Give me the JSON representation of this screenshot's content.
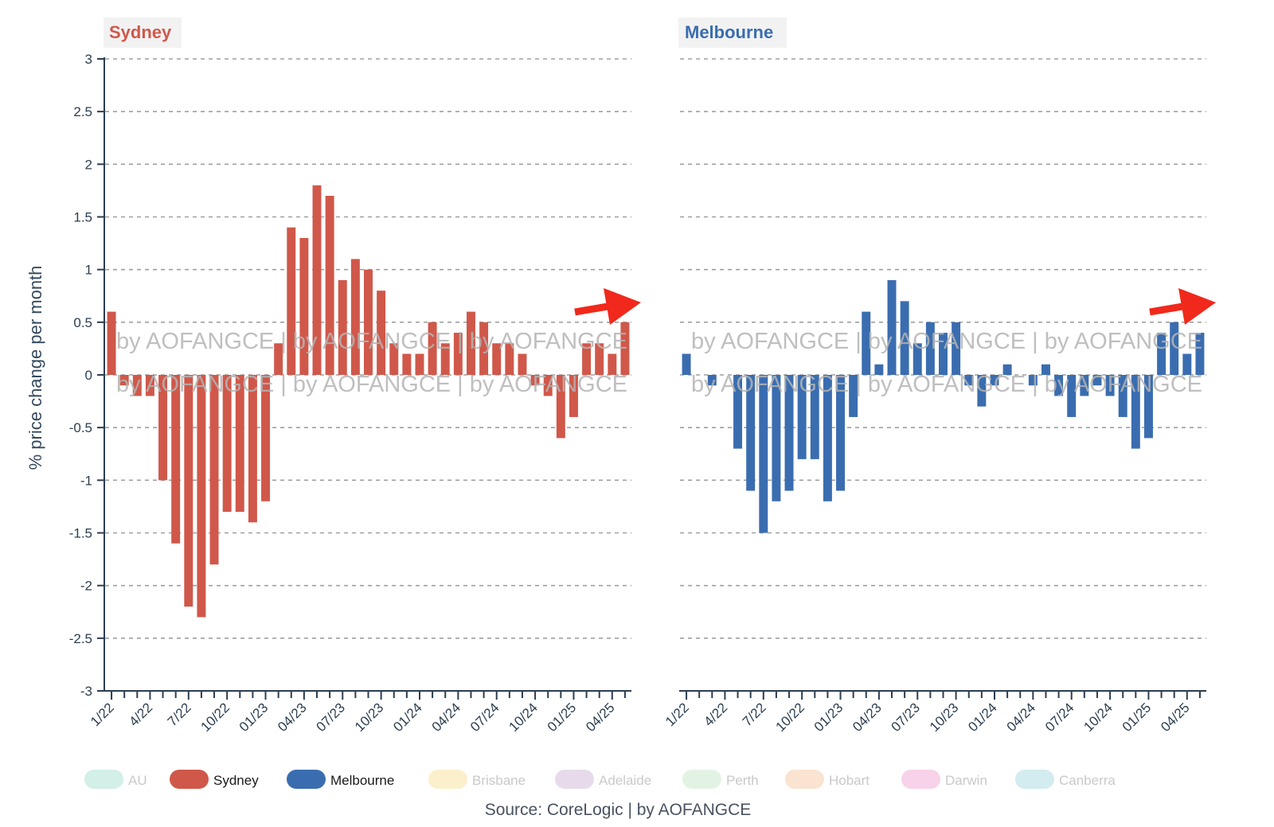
{
  "chart_data": [
    {
      "type": "bar",
      "title": "Sydney",
      "ylabel": "% price change per month",
      "ylim": [
        -3,
        3
      ],
      "yticks": [
        "3",
        "2.5",
        "2",
        "1.5",
        "1",
        "0.5",
        "0",
        "-0.5",
        "-1",
        "-1.5",
        "-2",
        "-2.5",
        "-3"
      ],
      "x_tick_labels": [
        "1/22",
        "4/22",
        "7/22",
        "10/22",
        "01/23",
        "04/23",
        "07/23",
        "10/23",
        "01/24",
        "04/24",
        "07/24",
        "10/24",
        "01/25",
        "04/25"
      ],
      "series": [
        {
          "name": "Sydney",
          "color": "#d0584a",
          "values": [
            0.6,
            -0.1,
            -0.2,
            -0.2,
            -1.0,
            -1.6,
            -2.2,
            -2.3,
            -1.8,
            -1.3,
            -1.3,
            -1.4,
            -1.2,
            0.3,
            1.4,
            1.3,
            1.8,
            1.7,
            0.9,
            1.1,
            1.0,
            0.8,
            0.3,
            0.2,
            0.2,
            0.5,
            0.3,
            0.4,
            0.6,
            0.5,
            0.3,
            0.3,
            0.2,
            -0.1,
            -0.2,
            -0.6,
            -0.4,
            0.3,
            0.3,
            0.2,
            0.5
          ]
        }
      ],
      "grid": true
    },
    {
      "type": "bar",
      "title": "Melbourne",
      "ylim": [
        -3,
        3
      ],
      "x_tick_labels": [
        "1/22",
        "4/22",
        "7/22",
        "10/22",
        "01/23",
        "04/23",
        "07/23",
        "10/23",
        "01/24",
        "04/24",
        "07/24",
        "10/24",
        "01/25",
        "04/25"
      ],
      "series": [
        {
          "name": "Melbourne",
          "color": "#3a6db0",
          "values": [
            0.2,
            0.0,
            -0.1,
            0.0,
            -0.7,
            -1.1,
            -1.5,
            -1.2,
            -1.1,
            -0.8,
            -0.8,
            -1.2,
            -1.1,
            -0.4,
            0.6,
            0.1,
            0.9,
            0.7,
            0.3,
            0.5,
            0.4,
            0.5,
            -0.1,
            -0.3,
            -0.1,
            0.1,
            0.0,
            -0.1,
            0.1,
            -0.2,
            -0.4,
            -0.2,
            -0.1,
            -0.2,
            -0.4,
            -0.7,
            -0.6,
            0.4,
            0.5,
            0.2,
            0.4
          ]
        }
      ],
      "grid": true
    }
  ],
  "watermark": {
    "line1": "by AOFANGCE | by AOFANGCE | by AOFANGCE",
    "line2": "by AOFANGCE | by AOFANGCE | by AOFANGCE"
  },
  "legend": {
    "placement": "bottom",
    "items": [
      {
        "label": "AU",
        "color": "#8fd8c6",
        "active": false
      },
      {
        "label": "Sydney",
        "color": "#d0584a",
        "active": true
      },
      {
        "label": "Melbourne",
        "color": "#3a6db0",
        "active": true
      },
      {
        "label": "Brisbane",
        "color": "#f7d77c",
        "active": false
      },
      {
        "label": "Adelaide",
        "color": "#c3a5cc",
        "active": false
      },
      {
        "label": "Perth",
        "color": "#b8e0b8",
        "active": false
      },
      {
        "label": "Hobart",
        "color": "#f3b98a",
        "active": false
      },
      {
        "label": "Darwin",
        "color": "#ee8fc8",
        "active": false
      },
      {
        "label": "Canberra",
        "color": "#8fcfd8",
        "active": false
      }
    ]
  },
  "source": "Source: CoreLogic | by AOFANGCE",
  "colors": {
    "sydney": "#d0584a",
    "melbourne": "#3a6db0",
    "arrow": "#f0291c",
    "axis": "#2c3e50"
  }
}
